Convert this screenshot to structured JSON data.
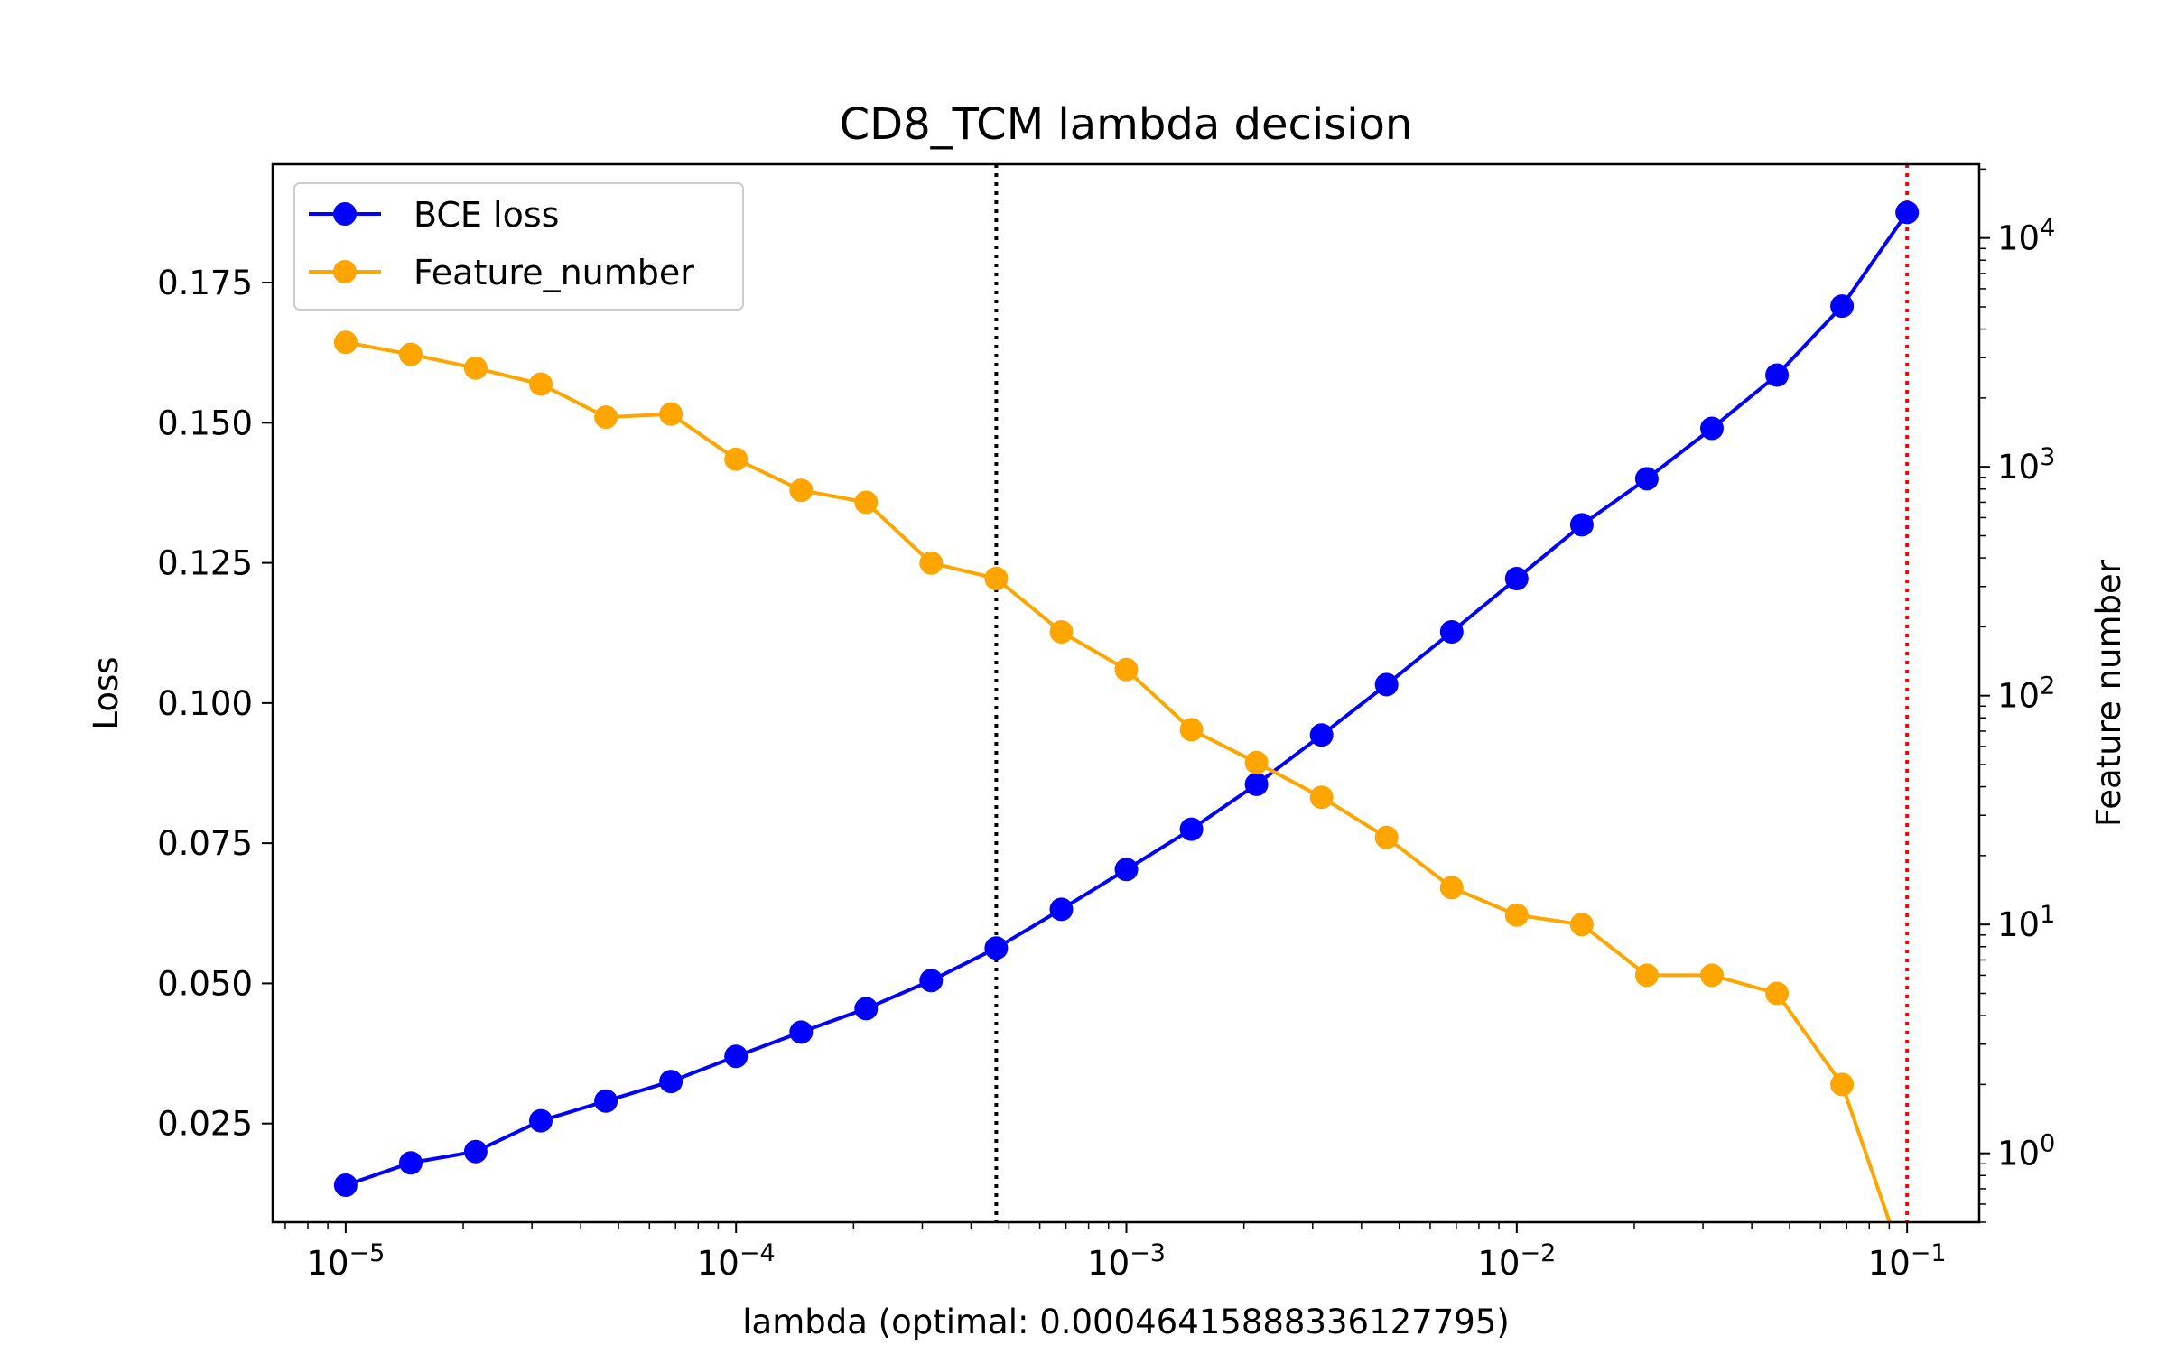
{
  "chart_data": {
    "type": "line",
    "title": "CD8_TCM lambda decision",
    "xlabel": "lambda (optimal: 0.00046415888336127795)",
    "ylabel_left": "Loss",
    "ylabel_right": "Feature number",
    "x_scale": "log",
    "y_right_scale": "log",
    "xlim": [
      6.5e-06,
      0.153
    ],
    "ylim_left": [
      0.0074,
      0.1961
    ],
    "ylim_right": [
      0.5,
      21000
    ],
    "grid": false,
    "legend_position": "top-left",
    "x_tick_labels": [
      "10^-5",
      "10^-4",
      "10^-3",
      "10^-2",
      "10^-1"
    ],
    "y_left_tick_labels": [
      "0.025",
      "0.050",
      "0.075",
      "0.100",
      "0.125",
      "0.150",
      "0.175"
    ],
    "y_right_tick_labels": [
      "10^0",
      "10^1",
      "10^2",
      "10^3",
      "10^4"
    ],
    "x": [
      1e-05,
      1.468e-05,
      2.154e-05,
      3.162e-05,
      4.642e-05,
      6.813e-05,
      0.0001,
      0.0001468,
      0.0002154,
      0.0003162,
      0.0004642,
      0.0006813,
      0.001,
      0.001468,
      0.002154,
      0.003162,
      0.004642,
      0.006813,
      0.01,
      0.01468,
      0.02154,
      0.03162,
      0.04642,
      0.06813,
      0.1
    ],
    "series": [
      {
        "name": "BCE loss",
        "axis": "left",
        "color": "#0000ff",
        "values": [
          0.014,
          0.018,
          0.02,
          0.0255,
          0.029,
          0.0325,
          0.037,
          0.0413,
          0.0455,
          0.0505,
          0.0563,
          0.0632,
          0.0703,
          0.0775,
          0.0855,
          0.0943,
          0.1033,
          0.1127,
          0.1222,
          0.1318,
          0.14,
          0.149,
          0.1585,
          0.1708,
          0.1875
        ]
      },
      {
        "name": "Feature_number",
        "axis": "right",
        "color": "#ffa500",
        "values": [
          3500,
          3100,
          2700,
          2300,
          1650,
          1700,
          1080,
          790,
          700,
          380,
          325,
          190,
          130,
          71,
          51,
          36,
          24,
          14.5,
          11,
          10,
          6,
          6,
          5,
          2,
          0.3
        ]
      }
    ],
    "reference_lines": [
      {
        "x": 0.00046415888336127795,
        "color": "#000000",
        "style": "dotted"
      },
      {
        "x": 0.1,
        "color": "#ff0000",
        "style": "dotted"
      }
    ]
  }
}
